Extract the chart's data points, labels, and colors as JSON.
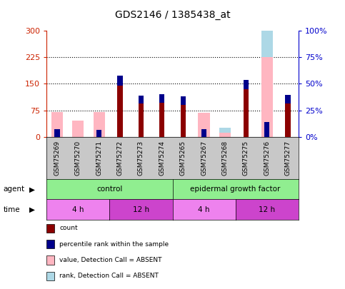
{
  "title": "GDS2146 / 1385438_at",
  "samples": [
    "GSM75269",
    "GSM75270",
    "GSM75271",
    "GSM75272",
    "GSM75273",
    "GSM75274",
    "GSM75265",
    "GSM75267",
    "GSM75268",
    "GSM75275",
    "GSM75276",
    "GSM75277"
  ],
  "count": [
    0,
    0,
    0,
    145,
    95,
    97,
    90,
    0,
    0,
    135,
    0,
    95
  ],
  "percentile_rank": [
    22,
    0,
    21,
    27,
    22,
    24,
    24,
    22,
    0,
    26,
    43,
    24
  ],
  "value_absent": [
    70,
    47,
    70,
    0,
    0,
    0,
    0,
    68,
    12,
    0,
    225,
    0
  ],
  "rank_absent": [
    0,
    0,
    0,
    0,
    0,
    0,
    0,
    0,
    15,
    0,
    130,
    0
  ],
  "ylim_left": [
    0,
    300
  ],
  "ylim_right": [
    0,
    100
  ],
  "yticks_left": [
    0,
    75,
    150,
    225,
    300
  ],
  "yticks_right": [
    0,
    25,
    50,
    75,
    100
  ],
  "ytick_labels_left": [
    "0",
    "75",
    "150",
    "225",
    "300"
  ],
  "ytick_labels_right": [
    "0%",
    "25%",
    "50%",
    "75%",
    "100%"
  ],
  "color_count": "#8b0000",
  "color_pct": "#00008b",
  "color_absent_value": "#ffb6c1",
  "color_absent_rank": "#add8e6",
  "left_axis_color": "#cc2200",
  "right_axis_color": "#0000cc",
  "agent_labels": [
    "control",
    "epidermal growth factor"
  ],
  "agent_color": "#90ee90",
  "time_labels": [
    "4 h",
    "12 h",
    "4 h",
    "12 h"
  ],
  "time_colors": [
    "#ee82ee",
    "#cc44cc",
    "#ee82ee",
    "#cc44cc"
  ],
  "legend_items": [
    [
      "#8b0000",
      "count"
    ],
    [
      "#00008b",
      "percentile rank within the sample"
    ],
    [
      "#ffb6c1",
      "value, Detection Call = ABSENT"
    ],
    [
      "#add8e6",
      "rank, Detection Call = ABSENT"
    ]
  ],
  "sample_bg_color": "#c8c8c8",
  "plot_bg": "#ffffff",
  "grid_yticks": [
    75,
    150,
    225
  ]
}
